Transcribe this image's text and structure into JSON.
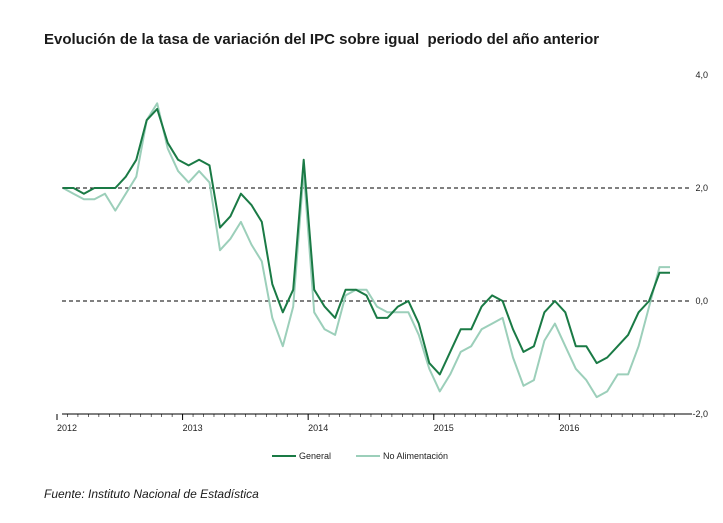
{
  "chart_data": {
    "type": "line",
    "title": "Evolución de la tasa de variación del IPC sobre igual  periodo del año anterior",
    "xlabel": "",
    "ylabel": "",
    "x_tick_labels": [
      "2012",
      "2013",
      "2014",
      "2015",
      "2016"
    ],
    "y_tick_labels": [
      "4,0",
      "2,0",
      "0,0",
      "-2,0"
    ],
    "ylim": [
      -2,
      4
    ],
    "y_axis_position": "right",
    "reference_lines": [
      2.0,
      0.0
    ],
    "legend_position": "bottom",
    "series": [
      {
        "name": "General",
        "color": "#1a7a45",
        "values": [
          2.0,
          2.0,
          1.9,
          2.0,
          2.0,
          2.0,
          2.2,
          2.5,
          3.2,
          3.4,
          2.8,
          2.5,
          2.4,
          2.5,
          2.4,
          1.3,
          1.5,
          1.9,
          1.7,
          1.4,
          0.3,
          -0.2,
          0.2,
          2.5,
          0.2,
          -0.1,
          -0.3,
          0.2,
          0.2,
          0.1,
          -0.3,
          -0.3,
          -0.1,
          0.0,
          -0.4,
          -1.1,
          -1.3,
          -0.9,
          -0.5,
          -0.5,
          -0.1,
          0.1,
          0.0,
          -0.5,
          -0.9,
          -0.8,
          -0.2,
          0.0,
          -0.2,
          -0.8,
          -0.8,
          -1.1,
          -1.0,
          -0.8,
          -0.6,
          -0.2,
          0.0,
          0.5,
          0.5
        ]
      },
      {
        "name": "No Alimentación",
        "color": "#9ccfba",
        "values": [
          2.0,
          1.9,
          1.8,
          1.8,
          1.9,
          1.6,
          1.9,
          2.2,
          3.2,
          3.5,
          2.7,
          2.3,
          2.1,
          2.3,
          2.1,
          0.9,
          1.1,
          1.4,
          1.0,
          0.7,
          -0.3,
          -0.8,
          -0.1,
          2.3,
          -0.2,
          -0.5,
          -0.6,
          0.1,
          0.2,
          0.2,
          -0.1,
          -0.2,
          -0.2,
          -0.2,
          -0.6,
          -1.2,
          -1.6,
          -1.3,
          -0.9,
          -0.8,
          -0.5,
          -0.4,
          -0.3,
          -1.0,
          -1.5,
          -1.4,
          -0.7,
          -0.4,
          -0.8,
          -1.2,
          -1.4,
          -1.7,
          -1.6,
          -1.3,
          -1.3,
          -0.8,
          -0.1,
          0.6,
          0.6
        ]
      }
    ]
  },
  "source": "Fuente: Instituto Nacional de Estadística"
}
